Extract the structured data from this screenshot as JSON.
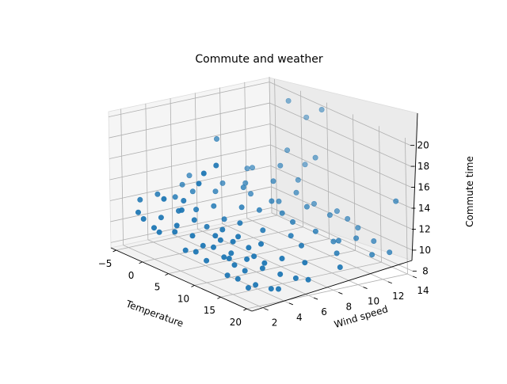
{
  "chart_data": {
    "type": "scatter",
    "title": "Commute and weather",
    "xlabel": "Temperature",
    "ylabel": "Wind speed",
    "zlabel": "Commute time",
    "x_ticks": [
      "−5",
      "0",
      "5",
      "10",
      "15",
      "20"
    ],
    "y_ticks": [
      "2",
      "4",
      "6",
      "8",
      "10",
      "12",
      "14"
    ],
    "z_ticks": [
      "8",
      "10",
      "12",
      "14",
      "16",
      "18",
      "20"
    ],
    "xlim": [
      -6,
      21
    ],
    "ylim": [
      1,
      14
    ],
    "zlim": [
      7.5,
      20.5
    ],
    "projection": "3d",
    "grid": true,
    "marker_color": "#1f77b4",
    "series": [
      {
        "points": [
          [
            18,
            2,
            8.8
          ],
          [
            17,
            3,
            8.6
          ],
          [
            19,
            4,
            8.4
          ],
          [
            14,
            2,
            9.1
          ],
          [
            15,
            3,
            9.5
          ],
          [
            16,
            4,
            9.7
          ],
          [
            20,
            5,
            9.4
          ],
          [
            10,
            2,
            9.6
          ],
          [
            12,
            3,
            10.0
          ],
          [
            13,
            4,
            9.9
          ],
          [
            11,
            5,
            10.3
          ],
          [
            9,
            3,
            10.4
          ],
          [
            8,
            2,
            10.0
          ],
          [
            6,
            2,
            9.7
          ],
          [
            7,
            4,
            10.8
          ],
          [
            5,
            3,
            10.6
          ],
          [
            4,
            2,
            11.0
          ],
          [
            3,
            4,
            11.4
          ],
          [
            2,
            3,
            10.9
          ],
          [
            0,
            2,
            10.5
          ],
          [
            1,
            5,
            11.7
          ],
          [
            -1,
            3,
            11.0
          ],
          [
            -3,
            2,
            11.3
          ],
          [
            -4,
            4,
            12.3
          ],
          [
            -2,
            6,
            12.5
          ],
          [
            0,
            7,
            12.7
          ],
          [
            -1,
            8,
            13.0
          ],
          [
            1,
            9,
            13.2
          ],
          [
            3,
            8,
            13.5
          ],
          [
            4,
            10,
            13.8
          ],
          [
            6,
            9,
            12.6
          ],
          [
            8,
            11,
            12.0
          ],
          [
            10,
            12,
            11.4
          ],
          [
            12,
            10,
            10.8
          ],
          [
            14,
            8,
            10.4
          ],
          [
            13,
            11,
            9.8
          ],
          [
            16,
            10,
            9.6
          ],
          [
            18,
            12,
            9.4
          ],
          [
            19,
            9,
            9.2
          ],
          [
            20,
            6,
            9.0
          ],
          [
            7,
            6,
            11.5
          ],
          [
            9,
            7,
            11.0
          ],
          [
            11,
            6,
            10.4
          ],
          [
            5,
            7,
            12.3
          ],
          [
            2,
            6,
            12.0
          ],
          [
            15,
            6,
            9.9
          ],
          [
            17,
            7,
            9.7
          ],
          [
            6,
            5,
            10.9
          ],
          [
            3,
            5,
            10.5
          ],
          [
            4,
            6,
            11.2
          ],
          [
            8,
            5,
            10.2
          ],
          [
            10,
            4,
            9.8
          ],
          [
            12,
            5,
            9.7
          ],
          [
            14,
            5,
            9.5
          ],
          [
            7,
            3,
            10.1
          ],
          [
            1,
            2,
            10.3
          ],
          [
            -2,
            2,
            10.9
          ],
          [
            -5,
            3,
            11.8
          ],
          [
            -3,
            5,
            12.0
          ],
          [
            0,
            4,
            11.6
          ],
          [
            2,
            9,
            12.4
          ],
          [
            5,
            10,
            12.1
          ],
          [
            7,
            12,
            11.8
          ],
          [
            9,
            13,
            11.3
          ],
          [
            11,
            13,
            11.0
          ],
          [
            13,
            13,
            10.6
          ],
          [
            15,
            12,
            10.3
          ],
          [
            6,
            11,
            12.9
          ],
          [
            4,
            12,
            13.4
          ],
          [
            3,
            11,
            14.8
          ],
          [
            5,
            13,
            15.5
          ],
          [
            2,
            12,
            15.8
          ],
          [
            -1,
            10,
            13.9
          ],
          [
            1,
            4,
            12.8
          ],
          [
            3,
            3,
            12.6
          ],
          [
            2,
            2,
            13.7
          ],
          [
            4,
            4,
            15.1
          ],
          [
            5,
            4,
            16.3
          ],
          [
            5,
            5,
            16.8
          ],
          [
            -2,
            8,
            17.0
          ],
          [
            1,
            14,
            18.2
          ],
          [
            4,
            14,
            19.6
          ],
          [
            0,
            13,
            19.8
          ],
          [
            18,
            14,
            14.0
          ],
          [
            8,
            9,
            11.9
          ],
          [
            10,
            9,
            11.5
          ],
          [
            12,
            8,
            10.9
          ],
          [
            16,
            13,
            10.0
          ],
          [
            19,
            13,
            9.6
          ],
          [
            14,
            11,
            10.1
          ],
          [
            9,
            5,
            10.9
          ],
          [
            6,
            8,
            12.0
          ],
          [
            -4,
            6,
            12.7
          ],
          [
            -5,
            7,
            13.1
          ],
          [
            0,
            10,
            14.2
          ],
          [
            3,
            13,
            14.4
          ],
          [
            8,
            4,
            10.6
          ],
          [
            11,
            3,
            9.9
          ],
          [
            13,
            3,
            9.6
          ],
          [
            16,
            2,
            9.2
          ],
          [
            20,
            3,
            8.9
          ],
          [
            17,
            5,
            9.1
          ]
        ]
      }
    ]
  }
}
